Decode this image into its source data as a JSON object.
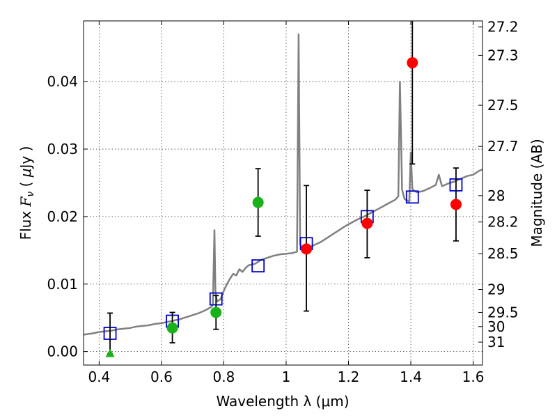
{
  "chart_data": {
    "type": "scatter",
    "title": "",
    "xlabel": "Wavelength  λ (μm)",
    "ylabel": "Flux  F_ν  ( μJy )",
    "ylabel_parts": [
      "Flux  ",
      "F",
      "ν",
      "  ( ",
      "μ",
      "Jy )"
    ],
    "y2label": "Magnitude (AB)",
    "xlim": [
      0.35,
      1.63
    ],
    "ylim": [
      -0.002,
      0.049
    ],
    "grid": true,
    "x_ticks": [
      0.4,
      0.6,
      0.8,
      1.0,
      1.2,
      1.4,
      1.6
    ],
    "x_tick_labels": [
      "0.4",
      "0.6",
      "0.8",
      "1",
      "1.2",
      "1.4",
      "1.6"
    ],
    "y_ticks": [
      0.0,
      0.01,
      0.02,
      0.03,
      0.04
    ],
    "y_tick_labels": [
      "0.00",
      "0.01",
      "0.02",
      "0.03",
      "0.04"
    ],
    "y2_ticks": [
      {
        "label": "27.2",
        "flux": 0.0481
      },
      {
        "label": "27.3",
        "flux": 0.0439
      },
      {
        "label": "27.5",
        "flux": 0.0365
      },
      {
        "label": "27.7",
        "flux": 0.0304
      },
      {
        "label": "28",
        "flux": 0.0231
      },
      {
        "label": "28.2",
        "flux": 0.0192
      },
      {
        "label": "28.5",
        "flux": 0.0145
      },
      {
        "label": "29",
        "flux": 0.0092
      },
      {
        "label": "29.5",
        "flux": 0.0058
      },
      {
        "label": "30",
        "flux": 0.0037
      },
      {
        "label": "31",
        "flux": 0.0014
      }
    ],
    "colors": {
      "model": "#808080",
      "model_fit": "#0000cc",
      "optical": "#1ab21a",
      "nir": "#ff0000",
      "upper_limit": "#1ab21a",
      "errorbar": "#000000"
    },
    "model_spectrum": {
      "name": "",
      "points": [
        [
          0.35,
          0.0025
        ],
        [
          0.38,
          0.0027
        ],
        [
          0.4,
          0.0029
        ],
        [
          0.42,
          0.003
        ],
        [
          0.44,
          0.0031
        ],
        [
          0.46,
          0.0033
        ],
        [
          0.48,
          0.0034
        ],
        [
          0.5,
          0.0035
        ],
        [
          0.52,
          0.0037
        ],
        [
          0.54,
          0.0038
        ],
        [
          0.56,
          0.0039
        ],
        [
          0.58,
          0.0041
        ],
        [
          0.6,
          0.0042
        ],
        [
          0.62,
          0.0044
        ],
        [
          0.64,
          0.0046
        ],
        [
          0.66,
          0.0048
        ],
        [
          0.68,
          0.0051
        ],
        [
          0.7,
          0.0054
        ],
        [
          0.72,
          0.0057
        ],
        [
          0.74,
          0.0061
        ],
        [
          0.76,
          0.0066
        ],
        [
          0.765,
          0.007
        ],
        [
          0.77,
          0.018
        ],
        [
          0.773,
          0.009
        ],
        [
          0.778,
          0.0074
        ],
        [
          0.79,
          0.0078
        ],
        [
          0.8,
          0.009
        ],
        [
          0.81,
          0.01
        ],
        [
          0.82,
          0.0108
        ],
        [
          0.83,
          0.0115
        ],
        [
          0.84,
          0.0113
        ],
        [
          0.85,
          0.0122
        ],
        [
          0.86,
          0.0118
        ],
        [
          0.87,
          0.0124
        ],
        [
          0.88,
          0.0128
        ],
        [
          0.9,
          0.013
        ],
        [
          0.92,
          0.0136
        ],
        [
          0.94,
          0.0139
        ],
        [
          0.96,
          0.0142
        ],
        [
          0.98,
          0.0144
        ],
        [
          1.0,
          0.0145
        ],
        [
          1.02,
          0.0146
        ],
        [
          1.035,
          0.0148
        ],
        [
          1.04,
          0.047
        ],
        [
          1.045,
          0.016
        ],
        [
          1.05,
          0.0149
        ],
        [
          1.07,
          0.0153
        ],
        [
          1.09,
          0.0158
        ],
        [
          1.11,
          0.0162
        ],
        [
          1.13,
          0.0168
        ],
        [
          1.15,
          0.0174
        ],
        [
          1.17,
          0.018
        ],
        [
          1.19,
          0.0186
        ],
        [
          1.21,
          0.0191
        ],
        [
          1.23,
          0.0196
        ],
        [
          1.25,
          0.02
        ],
        [
          1.27,
          0.0205
        ],
        [
          1.29,
          0.021
        ],
        [
          1.31,
          0.0215
        ],
        [
          1.33,
          0.022
        ],
        [
          1.35,
          0.0225
        ],
        [
          1.36,
          0.023
        ],
        [
          1.365,
          0.04
        ],
        [
          1.372,
          0.024
        ],
        [
          1.38,
          0.0226
        ],
        [
          1.395,
          0.0222
        ],
        [
          1.4,
          0.0295
        ],
        [
          1.405,
          0.024
        ],
        [
          1.42,
          0.0236
        ],
        [
          1.44,
          0.0238
        ],
        [
          1.46,
          0.0242
        ],
        [
          1.48,
          0.0247
        ],
        [
          1.49,
          0.0262
        ],
        [
          1.5,
          0.0245
        ],
        [
          1.52,
          0.0249
        ],
        [
          1.54,
          0.0252
        ],
        [
          1.56,
          0.0256
        ],
        [
          1.58,
          0.026
        ],
        [
          1.6,
          0.0262
        ],
        [
          1.62,
          0.0268
        ],
        [
          1.63,
          0.027
        ]
      ]
    },
    "series": [
      {
        "name": "",
        "marker": "open-square",
        "color": "#0000cc",
        "points": [
          [
            0.435,
            0.0027
          ],
          [
            0.635,
            0.0045
          ],
          [
            0.775,
            0.0078
          ],
          [
            0.91,
            0.0127
          ],
          [
            1.065,
            0.016
          ],
          [
            1.26,
            0.02
          ],
          [
            1.405,
            0.0229
          ],
          [
            1.545,
            0.0247
          ]
        ]
      },
      {
        "name": "",
        "marker": "filled-circle",
        "color": "#1ab21a",
        "points": [
          {
            "x": 0.635,
            "y": 0.0035,
            "yerr_low": 0.0022,
            "yerr_high": 0.0023
          },
          {
            "x": 0.775,
            "y": 0.0058,
            "yerr_low": 0.0025,
            "yerr_high": 0.0025
          },
          {
            "x": 0.91,
            "y": 0.0221,
            "yerr_low": 0.005,
            "yerr_high": 0.005
          }
        ]
      },
      {
        "name": "",
        "marker": "filled-circle",
        "color": "#ff0000",
        "points": [
          {
            "x": 1.065,
            "y": 0.0152,
            "yerr_low": 0.0092,
            "yerr_high": 0.0094
          },
          {
            "x": 1.26,
            "y": 0.019,
            "yerr_low": 0.0051,
            "yerr_high": 0.0049
          },
          {
            "x": 1.405,
            "y": 0.0428,
            "yerr_low": 0.015,
            "yerr_high": 0.007
          },
          {
            "x": 1.545,
            "y": 0.0218,
            "yerr_low": 0.0054,
            "yerr_high": 0.0054
          }
        ]
      },
      {
        "name": "",
        "marker": "upper-limit-triangle",
        "color": "#1ab21a",
        "points": [
          {
            "x": 0.435,
            "y": -0.0003,
            "yerr_low": 0.0,
            "yerr_high": 0.006
          }
        ]
      }
    ]
  }
}
